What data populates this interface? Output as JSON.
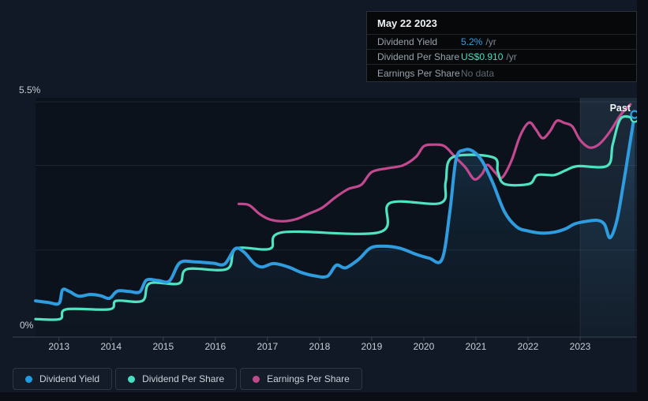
{
  "tooltip": {
    "date": "May 22 2023",
    "rows": [
      {
        "label": "Dividend Yield",
        "value": "5.2%",
        "unit": "/yr",
        "value_color": "#2FA2E8"
      },
      {
        "label": "Dividend Per Share",
        "value": "US$0.910",
        "unit": "/yr",
        "value_color": "#41E0C3"
      },
      {
        "label": "Earnings Per Share",
        "value": "No data",
        "unit": "",
        "value_color": "#5E6873"
      }
    ]
  },
  "chart": {
    "y_max_label": "5.5%",
    "y_min_label": "0%",
    "past_label": "Past",
    "years": [
      2013,
      2014,
      2015,
      2016,
      2017,
      2018,
      2019,
      2020,
      2021,
      2022,
      2023
    ]
  },
  "legend": [
    {
      "label": "Dividend Yield",
      "color": "#1E9DE4"
    },
    {
      "label": "Dividend Per Share",
      "color": "#45E0C1"
    },
    {
      "label": "Earnings Per Share",
      "color": "#C0498B"
    }
  ],
  "chart_data": {
    "type": "line",
    "title": "Dividend history",
    "xlabel": "",
    "ylabel": "",
    "x_range": [
      2012.55,
      2023.4
    ],
    "ylim": [
      0,
      5.5
    ],
    "y_unit": "%",
    "gridlines_pct": [
      5.5,
      4,
      2
    ],
    "legend_position": "bottom-left",
    "past_band_start": 2023.0,
    "series": [
      {
        "name": "Earnings Per Share",
        "color": "#C2498F",
        "width": 3.2,
        "end_marker": false,
        "points": [
          [
            2016.45,
            3.09
          ],
          [
            2016.65,
            3.06
          ],
          [
            2016.85,
            2.85
          ],
          [
            2017.05,
            2.72
          ],
          [
            2017.3,
            2.68
          ],
          [
            2017.55,
            2.73
          ],
          [
            2017.8,
            2.86
          ],
          [
            2018.05,
            3.0
          ],
          [
            2018.3,
            3.24
          ],
          [
            2018.55,
            3.44
          ],
          [
            2018.8,
            3.54
          ],
          [
            2019.0,
            3.84
          ],
          [
            2019.3,
            3.93
          ],
          [
            2019.6,
            4.0
          ],
          [
            2019.85,
            4.2
          ],
          [
            2020.0,
            4.45
          ],
          [
            2020.2,
            4.49
          ],
          [
            2020.4,
            4.45
          ],
          [
            2020.6,
            4.2
          ],
          [
            2020.8,
            3.95
          ],
          [
            2020.97,
            3.67
          ],
          [
            2021.12,
            3.8
          ],
          [
            2021.22,
            4.01
          ],
          [
            2021.37,
            3.83
          ],
          [
            2021.5,
            3.71
          ],
          [
            2021.68,
            4.1
          ],
          [
            2021.85,
            4.7
          ],
          [
            2022.02,
            5.01
          ],
          [
            2022.15,
            4.85
          ],
          [
            2022.28,
            4.64
          ],
          [
            2022.42,
            4.8
          ],
          [
            2022.55,
            5.05
          ],
          [
            2022.7,
            5.0
          ],
          [
            2022.85,
            4.92
          ],
          [
            2023.0,
            4.6
          ],
          [
            2023.07,
            4.42
          ],
          [
            2023.14,
            4.5
          ],
          [
            2023.22,
            4.8
          ],
          [
            2023.3,
            5.2
          ],
          [
            2023.37,
            5.44
          ]
        ]
      },
      {
        "name": "Dividend Per Share",
        "color": "#4FE3C2",
        "width": 3.2,
        "end_marker": true,
        "points": [
          [
            2012.55,
            0.37
          ],
          [
            2013.02,
            0.37
          ],
          [
            2013.14,
            0.6
          ],
          [
            2013.97,
            0.6
          ],
          [
            2014.1,
            0.8
          ],
          [
            2014.6,
            0.8
          ],
          [
            2014.74,
            1.21
          ],
          [
            2015.3,
            1.21
          ],
          [
            2015.46,
            1.55
          ],
          [
            2016.22,
            1.55
          ],
          [
            2016.4,
            2.03
          ],
          [
            2017.05,
            2.03
          ],
          [
            2017.3,
            2.42
          ],
          [
            2019.15,
            2.42
          ],
          [
            2019.35,
            3.11
          ],
          [
            2020.32,
            3.11
          ],
          [
            2020.42,
            3.6
          ],
          [
            2020.55,
            4.19
          ],
          [
            2021.33,
            4.19
          ],
          [
            2021.42,
            3.85
          ],
          [
            2021.55,
            3.56
          ],
          [
            2022.02,
            3.56
          ],
          [
            2022.18,
            3.77
          ],
          [
            2022.5,
            3.77
          ],
          [
            2022.72,
            3.88
          ],
          [
            2022.95,
            3.98
          ],
          [
            2023.2,
            3.99
          ],
          [
            2023.24,
            4.5
          ],
          [
            2023.3,
            5.11
          ],
          [
            2023.4,
            5.11
          ]
        ]
      },
      {
        "name": "Dividend Yield",
        "color": "#2F9CE0",
        "width": 4,
        "area_fill": true,
        "end_marker": true,
        "points": [
          [
            2012.55,
            0.8
          ],
          [
            2012.8,
            0.76
          ],
          [
            2013.0,
            0.74
          ],
          [
            2013.07,
            1.06
          ],
          [
            2013.2,
            1.02
          ],
          [
            2013.38,
            0.91
          ],
          [
            2013.6,
            0.95
          ],
          [
            2013.8,
            0.92
          ],
          [
            2013.97,
            0.86
          ],
          [
            2014.12,
            1.03
          ],
          [
            2014.35,
            1.02
          ],
          [
            2014.55,
            1.01
          ],
          [
            2014.68,
            1.29
          ],
          [
            2014.9,
            1.28
          ],
          [
            2015.12,
            1.27
          ],
          [
            2015.32,
            1.7
          ],
          [
            2015.6,
            1.72
          ],
          [
            2015.95,
            1.69
          ],
          [
            2016.18,
            1.67
          ],
          [
            2016.38,
            2.03
          ],
          [
            2016.55,
            1.95
          ],
          [
            2016.75,
            1.68
          ],
          [
            2016.9,
            1.6
          ],
          [
            2017.12,
            1.68
          ],
          [
            2017.4,
            1.6
          ],
          [
            2017.65,
            1.47
          ],
          [
            2017.9,
            1.39
          ],
          [
            2018.15,
            1.38
          ],
          [
            2018.32,
            1.64
          ],
          [
            2018.5,
            1.58
          ],
          [
            2018.75,
            1.78
          ],
          [
            2018.98,
            2.05
          ],
          [
            2019.25,
            2.09
          ],
          [
            2019.55,
            2.04
          ],
          [
            2019.85,
            1.9
          ],
          [
            2020.1,
            1.81
          ],
          [
            2020.35,
            1.78
          ],
          [
            2020.5,
            2.9
          ],
          [
            2020.62,
            4.15
          ],
          [
            2020.78,
            4.36
          ],
          [
            2020.95,
            4.33
          ],
          [
            2021.12,
            4.1
          ],
          [
            2021.32,
            3.6
          ],
          [
            2021.55,
            2.9
          ],
          [
            2021.78,
            2.55
          ],
          [
            2022.0,
            2.45
          ],
          [
            2022.25,
            2.4
          ],
          [
            2022.5,
            2.42
          ],
          [
            2022.72,
            2.5
          ],
          [
            2022.9,
            2.62
          ],
          [
            2023.05,
            2.68
          ],
          [
            2023.13,
            2.7
          ],
          [
            2023.18,
            2.6
          ],
          [
            2023.22,
            2.29
          ],
          [
            2023.27,
            2.7
          ],
          [
            2023.32,
            3.6
          ],
          [
            2023.37,
            4.6
          ],
          [
            2023.4,
            5.2
          ]
        ]
      }
    ]
  }
}
